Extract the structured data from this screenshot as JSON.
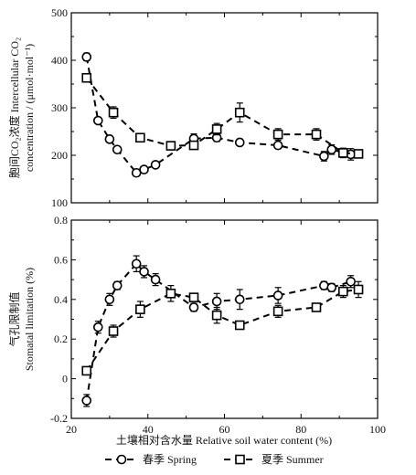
{
  "chart_data": [
    {
      "type": "line",
      "ylabel_lines": [
        "胞间CO₂浓度 Intercellular CO₂",
        "concentration / (μmol·mol⁻¹)"
      ],
      "xlim": [
        20,
        100
      ],
      "ylim": [
        100,
        500
      ],
      "yticks": [
        100,
        200,
        300,
        400,
        500
      ],
      "series": [
        {
          "name": "春季 Spring",
          "marker": "circle",
          "x": [
            24,
            27,
            30,
            32,
            37,
            39,
            42,
            52,
            58,
            64,
            74,
            86,
            88,
            93
          ],
          "y": [
            407,
            273,
            234,
            212,
            163,
            170,
            180,
            235,
            237,
            227,
            221,
            198,
            212,
            202
          ],
          "err": [
            8,
            5,
            6,
            5,
            6,
            5,
            6,
            10,
            8,
            5,
            6,
            10,
            10,
            12
          ]
        },
        {
          "name": "夏季 Summer",
          "marker": "square",
          "x": [
            24,
            31,
            38,
            46,
            52,
            58,
            64,
            74,
            84,
            91,
            95
          ],
          "y": [
            363,
            290,
            237,
            220,
            221,
            255,
            290,
            244,
            244,
            205,
            203
          ],
          "err": [
            8,
            12,
            6,
            5,
            8,
            12,
            20,
            12,
            12,
            10,
            8
          ]
        }
      ]
    },
    {
      "type": "line",
      "ylabel_lines": [
        "气孔限制值",
        "Stomatal limitation (%)"
      ],
      "xlim": [
        20,
        100
      ],
      "ylim": [
        -0.2,
        0.8
      ],
      "yticks": [
        -0.2,
        0,
        0.2,
        0.4,
        0.6,
        0.8
      ],
      "series": [
        {
          "name": "春季 Spring",
          "marker": "circle",
          "x": [
            24,
            27,
            30,
            32,
            37,
            39,
            42,
            52,
            58,
            64,
            74,
            86,
            88,
            93
          ],
          "y": [
            -0.11,
            0.26,
            0.4,
            0.47,
            0.58,
            0.54,
            0.5,
            0.36,
            0.39,
            0.4,
            0.42,
            0.47,
            0.46,
            0.49
          ],
          "err": [
            0.03,
            0.03,
            0.03,
            0.02,
            0.04,
            0.03,
            0.03,
            0.02,
            0.04,
            0.05,
            0.04,
            0.02,
            0.02,
            0.03
          ]
        },
        {
          "name": "夏季 Summer",
          "marker": "square",
          "x": [
            24,
            31,
            38,
            46,
            52,
            58,
            64,
            74,
            84,
            91,
            95
          ],
          "y": [
            0.04,
            0.24,
            0.35,
            0.43,
            0.41,
            0.32,
            0.27,
            0.34,
            0.36,
            0.44,
            0.45
          ],
          "err": [
            0.02,
            0.03,
            0.04,
            0.04,
            0.02,
            0.04,
            0.02,
            0.03,
            0.02,
            0.03,
            0.04
          ]
        }
      ]
    }
  ],
  "x_axis": {
    "label": "土壤相对含水量 Relative soil water content (%)",
    "ticks": [
      20,
      40,
      60,
      80,
      100
    ]
  },
  "legend": {
    "placement": "bottom",
    "items": [
      {
        "label": "春季 Spring",
        "marker": "circle"
      },
      {
        "label": "夏季 Summer",
        "marker": "square"
      }
    ]
  }
}
